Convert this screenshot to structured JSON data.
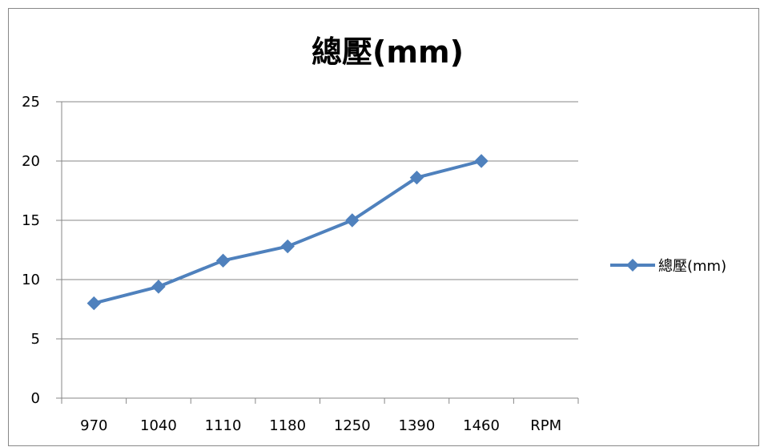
{
  "chart_data": {
    "type": "line",
    "title": "總壓(mm)",
    "categories": [
      "970",
      "1040",
      "1110",
      "1180",
      "1250",
      "1390",
      "1460",
      "RPM"
    ],
    "series": [
      {
        "name": "總壓(mm)",
        "values": [
          8.0,
          9.4,
          11.6,
          12.8,
          15.0,
          18.6,
          20.0,
          null
        ]
      }
    ],
    "ylim": [
      0,
      25
    ],
    "yticks": [
      0,
      5,
      10,
      15,
      20,
      25
    ],
    "ytick_labels": [
      "0",
      "5",
      "10",
      "15",
      "20",
      "25"
    ],
    "grid": true,
    "legend_position": "right",
    "colors": {
      "series": "#4f81bd",
      "grid": "#878787",
      "axis": "#878787"
    }
  }
}
